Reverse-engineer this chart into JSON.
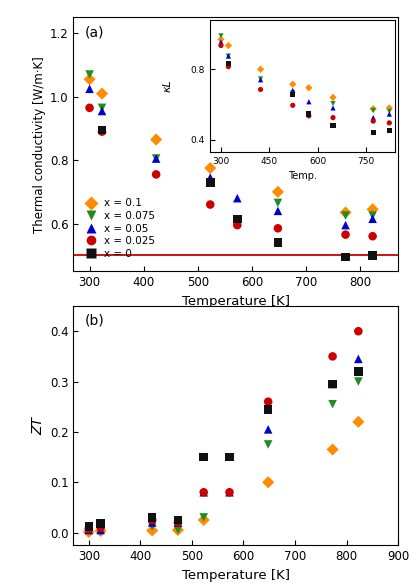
{
  "panel_a": {
    "title": "(a)",
    "xlabel": "Temperature [K]",
    "ylabel": "Thermal conductivity [W/m·K]",
    "xlim": [
      270,
      870
    ],
    "ylim": [
      0.45,
      1.25
    ],
    "yticks": [
      0.6,
      0.8,
      1.0,
      1.2
    ],
    "xticks": [
      300,
      400,
      500,
      600,
      700,
      800
    ],
    "hline_y": 0.5,
    "hline_color": "#cc0000",
    "series": {
      "x=0.1": {
        "color": "#ff8c00",
        "marker": "D",
        "T": [
          300,
          323,
          423,
          523,
          648,
          773,
          823
        ],
        "kappa": [
          1.055,
          1.01,
          0.865,
          0.775,
          0.7,
          0.635,
          0.645
        ]
      },
      "x=0.075": {
        "color": "#228b22",
        "marker": "v",
        "T": [
          300,
          323,
          423,
          523,
          648,
          773,
          823
        ],
        "kappa": [
          1.07,
          0.965,
          0.805,
          0.73,
          0.665,
          0.625,
          0.625
        ]
      },
      "x=0.05": {
        "color": "#0000cd",
        "marker": "^",
        "T": [
          300,
          323,
          423,
          523,
          573,
          648,
          773,
          823
        ],
        "kappa": [
          1.025,
          0.955,
          0.805,
          0.745,
          0.68,
          0.64,
          0.595,
          0.615
        ]
      },
      "x=0.025": {
        "color": "#cc0000",
        "marker": "o",
        "T": [
          300,
          323,
          423,
          523,
          573,
          648,
          773,
          823
        ],
        "kappa": [
          0.965,
          0.89,
          0.755,
          0.66,
          0.595,
          0.585,
          0.565,
          0.56
        ]
      },
      "x=0": {
        "color": "#111111",
        "marker": "s",
        "T": [
          323,
          523,
          573,
          648,
          773,
          823
        ],
        "kappa": [
          0.895,
          0.73,
          0.615,
          0.54,
          0.495,
          0.5
        ]
      }
    }
  },
  "inset": {
    "xlabel": "Temp.",
    "ylabel": "κL",
    "xlim": [
      265,
      840
    ],
    "ylim": [
      0.33,
      1.08
    ],
    "yticks": [
      0.4,
      0.8
    ],
    "xticks": [
      300,
      450,
      600,
      750
    ],
    "series": {
      "x=0.1": {
        "color": "#ff8c00",
        "marker": "D",
        "T": [
          300,
          323,
          423,
          523,
          573,
          648,
          773,
          823
        ],
        "kL": [
          0.97,
          0.935,
          0.8,
          0.715,
          0.695,
          0.64,
          0.575,
          0.58
        ]
      },
      "x=0.075": {
        "color": "#228b22",
        "marker": "v",
        "T": [
          300,
          323,
          423,
          523,
          648,
          773,
          823
        ],
        "kL": [
          0.99,
          0.875,
          0.745,
          0.665,
          0.605,
          0.565,
          0.56
        ]
      },
      "x=0.05": {
        "color": "#0000cd",
        "marker": "^",
        "T": [
          300,
          323,
          423,
          523,
          573,
          648,
          773,
          823
        ],
        "kL": [
          0.955,
          0.875,
          0.74,
          0.68,
          0.615,
          0.58,
          0.525,
          0.545
        ]
      },
      "x=0.025": {
        "color": "#cc0000",
        "marker": "o",
        "T": [
          300,
          323,
          423,
          523,
          573,
          648,
          773,
          823
        ],
        "kL": [
          0.935,
          0.815,
          0.685,
          0.595,
          0.535,
          0.525,
          0.505,
          0.495
        ]
      },
      "x=0": {
        "color": "#111111",
        "marker": "s",
        "T": [
          323,
          523,
          573,
          648,
          773,
          823
        ],
        "kL": [
          0.835,
          0.655,
          0.545,
          0.48,
          0.44,
          0.45
        ]
      }
    }
  },
  "panel_b": {
    "title": "(b)",
    "xlabel": "Temperature [K]",
    "ylabel": "ZT",
    "xlim": [
      270,
      900
    ],
    "ylim": [
      -0.025,
      0.45
    ],
    "yticks": [
      0.0,
      0.1,
      0.2,
      0.3,
      0.4
    ],
    "xticks": [
      300,
      400,
      500,
      600,
      700,
      800,
      900
    ],
    "series": {
      "x=0.1": {
        "color": "#ff8c00",
        "marker": "D",
        "T": [
          300,
          323,
          423,
          473,
          523,
          648,
          773,
          823
        ],
        "ZT": [
          0.001,
          0.003,
          0.004,
          0.005,
          0.025,
          0.1,
          0.165,
          0.22
        ]
      },
      "x=0.075": {
        "color": "#228b22",
        "marker": "v",
        "T": [
          300,
          323,
          423,
          473,
          523,
          648,
          773,
          823
        ],
        "ZT": [
          0.003,
          0.003,
          0.012,
          0.005,
          0.03,
          0.175,
          0.255,
          0.3
        ]
      },
      "x=0.05": {
        "color": "#0000cd",
        "marker": "^",
        "T": [
          300,
          323,
          423,
          473,
          523,
          573,
          648,
          773,
          823
        ],
        "ZT": [
          0.005,
          0.005,
          0.02,
          0.02,
          0.08,
          0.08,
          0.205,
          0.295,
          0.345
        ]
      },
      "x=0.025": {
        "color": "#cc0000",
        "marker": "o",
        "T": [
          300,
          323,
          423,
          473,
          523,
          573,
          648,
          773,
          823
        ],
        "ZT": [
          0.007,
          0.01,
          0.025,
          0.02,
          0.08,
          0.08,
          0.26,
          0.35,
          0.4
        ]
      },
      "x=0": {
        "color": "#111111",
        "marker": "s",
        "T": [
          300,
          323,
          423,
          473,
          523,
          573,
          648,
          773,
          823
        ],
        "ZT": [
          0.012,
          0.018,
          0.03,
          0.025,
          0.15,
          0.15,
          0.245,
          0.295,
          0.32
        ]
      }
    }
  },
  "legend": {
    "labels": [
      "x = 0.1",
      "x = 0.075",
      "x = 0.05",
      "x = 0.025",
      "x = 0"
    ],
    "colors": [
      "#ff8c00",
      "#228b22",
      "#0000cd",
      "#cc0000",
      "#111111"
    ],
    "markers": [
      "D",
      "v",
      "^",
      "o",
      "s"
    ]
  }
}
